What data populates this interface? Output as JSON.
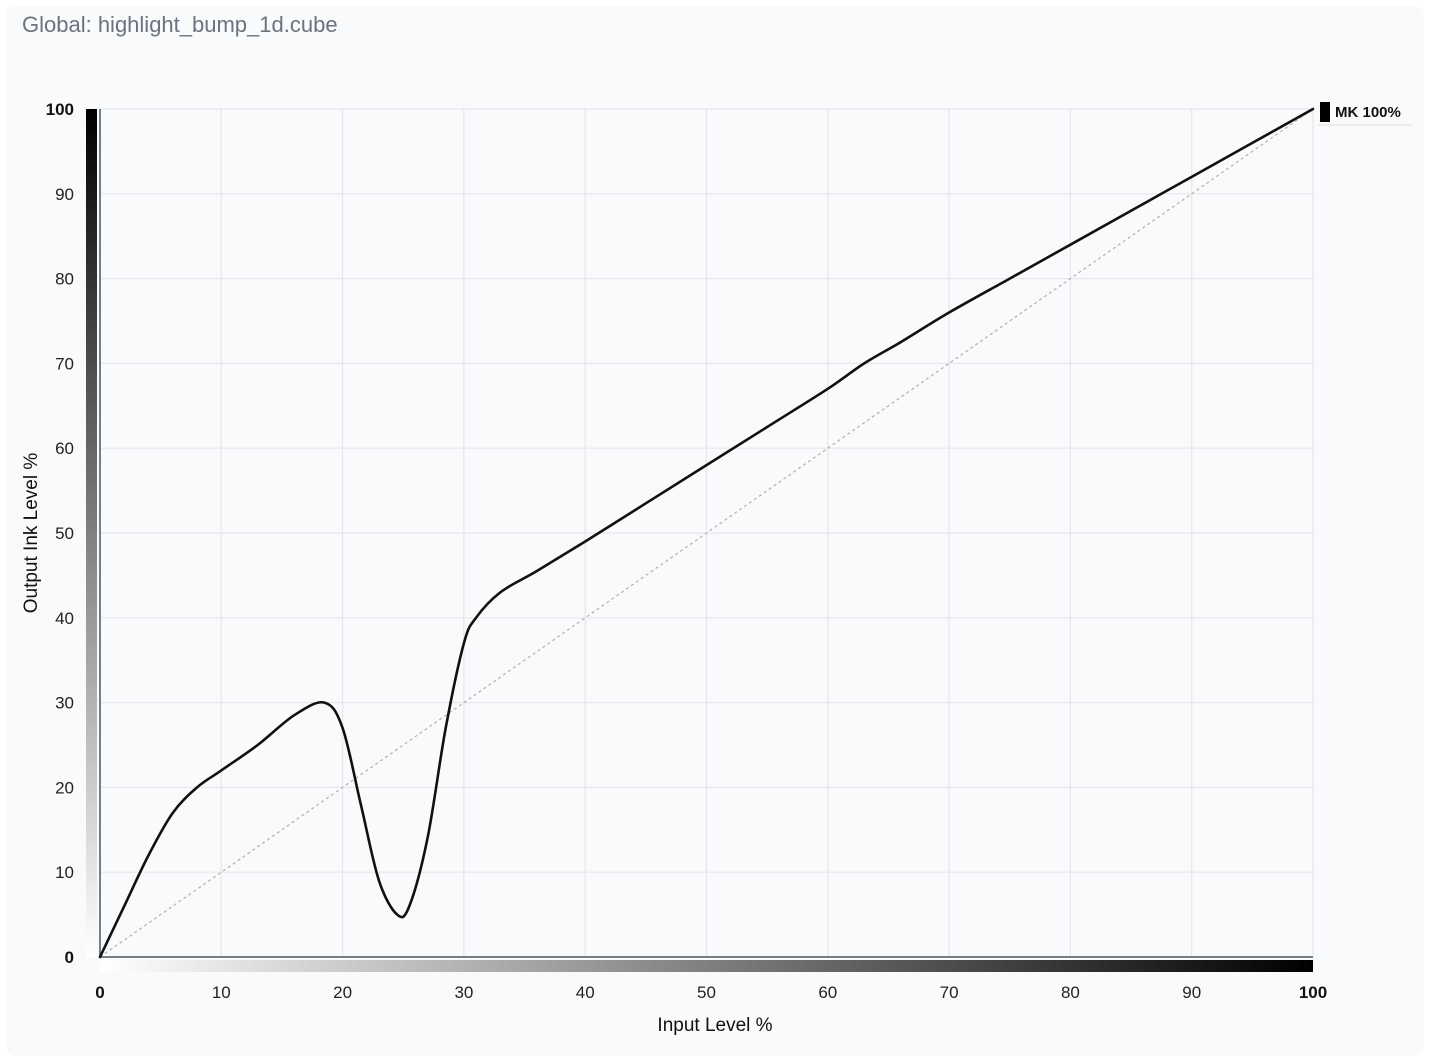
{
  "panel": {
    "title": "Global: highlight_bump_1d.cube"
  },
  "chart_data": {
    "type": "line",
    "title": "",
    "xlabel": "Input Level %",
    "ylabel": "Output Ink Level %",
    "xlim": [
      0,
      100
    ],
    "ylim": [
      0,
      100
    ],
    "x_ticks": [
      "0",
      "10",
      "20",
      "30",
      "40",
      "50",
      "60",
      "70",
      "80",
      "90",
      "100"
    ],
    "y_ticks": [
      "0",
      "10",
      "20",
      "30",
      "40",
      "50",
      "60",
      "70",
      "80",
      "90",
      "100"
    ],
    "grid": true,
    "legend_position": "top-right",
    "series": [
      {
        "name": "MK 100%",
        "color": "#111111",
        "x": [
          0,
          2,
          4,
          6,
          8,
          10,
          13,
          16,
          18.5,
          20,
          21.5,
          23,
          24.5,
          25.5,
          27,
          28.5,
          30,
          31,
          33,
          36,
          40,
          45,
          50,
          55,
          60,
          63,
          66,
          70,
          75,
          80,
          85,
          90,
          95,
          100
        ],
        "y": [
          0,
          6,
          12,
          17,
          20,
          22,
          25,
          28.5,
          30,
          27,
          18,
          9,
          5,
          6,
          14,
          27,
          37,
          40,
          43,
          45.5,
          49,
          53.5,
          58,
          62.5,
          67,
          70,
          72.5,
          76,
          80,
          84,
          88,
          92,
          96,
          100
        ]
      }
    ],
    "reference_line": {
      "x": [
        0,
        100
      ],
      "y": [
        0,
        100
      ],
      "color": "#b0b0b0"
    }
  }
}
